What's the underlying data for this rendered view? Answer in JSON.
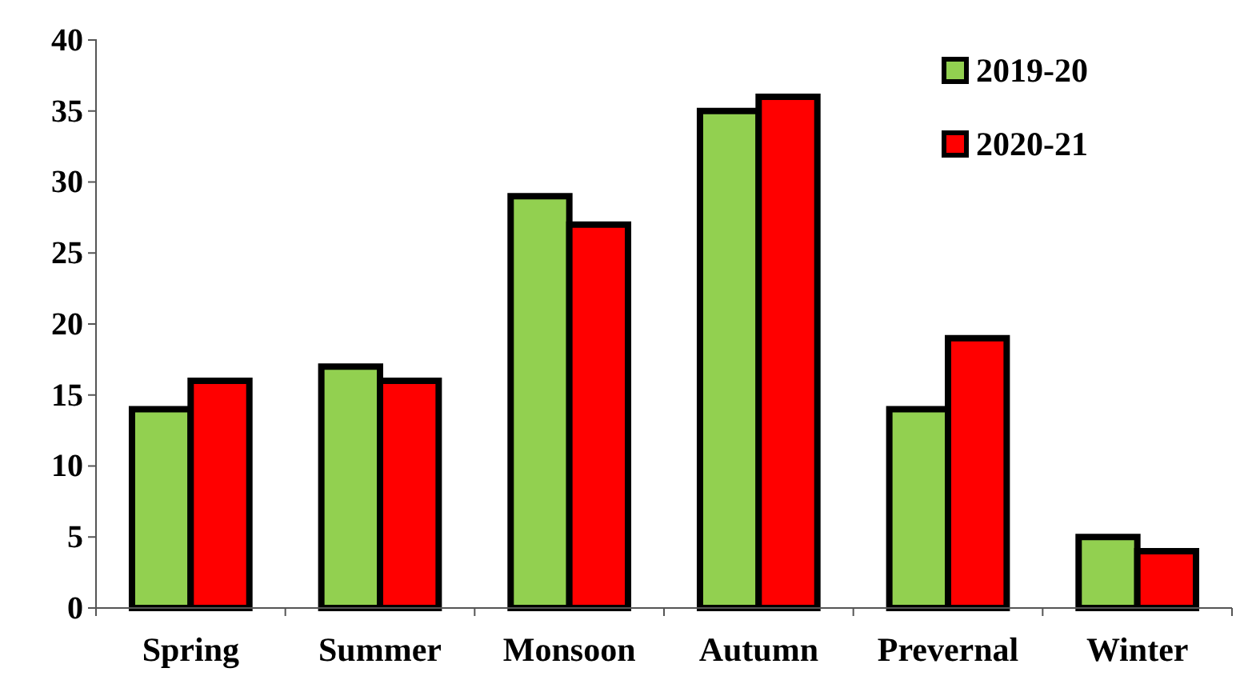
{
  "chart_data": {
    "type": "bar",
    "categories": [
      "Spring",
      "Summer",
      "Monsoon",
      "Autumn",
      "Prevernal",
      "Winter"
    ],
    "series": [
      {
        "name": "2019-20",
        "color": "#92d050",
        "values": [
          14,
          17,
          29,
          35,
          14,
          5
        ]
      },
      {
        "name": "2020-21",
        "color": "#ff0000",
        "values": [
          16,
          16,
          27,
          36,
          19,
          4
        ]
      }
    ],
    "ylim": [
      0,
      40
    ],
    "yticks": [
      0,
      5,
      10,
      15,
      20,
      25,
      30,
      35,
      40
    ],
    "grid": false,
    "legend": "top right"
  }
}
